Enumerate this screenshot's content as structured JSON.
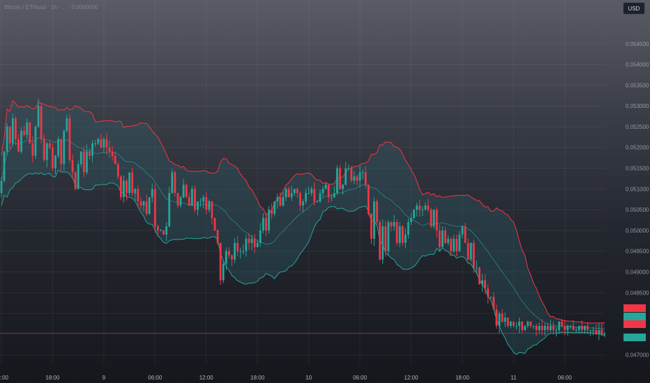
{
  "header": {
    "text": "Bitcoin / ETHusd · 1h · ... · 0.0000000"
  },
  "currency": {
    "label": "USD"
  },
  "colors": {
    "up": "#26a69a",
    "down": "#f23645",
    "band_upper": "#f23645",
    "band_lower": "#26a69a",
    "basis": "#2a9d99",
    "fill": "#2f5c66"
  },
  "chart_data": {
    "type": "candlestick",
    "ylim": [
      0.04676,
      0.05505
    ],
    "y_ticks": [
      0.047,
      0.0475,
      0.048,
      0.0485,
      0.049,
      0.0495,
      0.05,
      0.0505,
      0.051,
      0.0515,
      0.052,
      0.0525,
      0.053,
      0.0535,
      0.054,
      0.0545
    ],
    "y_tick_labels": [
      "0.047000",
      "",
      "",
      "0.048500",
      "0.049000",
      "0.049500",
      "0.050000",
      "0.050500",
      "0.051000",
      "0.051500",
      "0.052000",
      "0.052500",
      "0.053000",
      "0.053500",
      "0.054000",
      "0.054500"
    ],
    "x_tick_labels": [
      "12:00",
      "18:00",
      "9",
      "06:00",
      "12:00",
      "18:00",
      "10",
      "06:00",
      "12:00",
      "18:00",
      "11",
      "06:00"
    ],
    "x_tick_candles": [
      0,
      18,
      36,
      54,
      72,
      90,
      108,
      126,
      144,
      162,
      180,
      198
    ],
    "current_price": 0.04752,
    "close": [
      0.0512,
      0.0519,
      0.0525,
      0.0521,
      0.0527,
      0.0522,
      0.0519,
      0.0524,
      0.0523,
      0.0526,
      0.0521,
      0.0518,
      0.0525,
      0.053,
      0.0522,
      0.0517,
      0.0521,
      0.052,
      0.0515,
      0.0518,
      0.0522,
      0.0516,
      0.0524,
      0.0527,
      0.0517,
      0.0514,
      0.051,
      0.0516,
      0.0519,
      0.0514,
      0.0519,
      0.0518,
      0.0521,
      0.0521,
      0.0522,
      0.052,
      0.0522,
      0.052,
      0.0519,
      0.0518,
      0.0516,
      0.0513,
      0.0508,
      0.0512,
      0.0509,
      0.0514,
      0.0509,
      0.051,
      0.0507,
      0.0506,
      0.0507,
      0.0504,
      0.0508,
      0.051,
      0.0501,
      0.05,
      0.05,
      0.0499,
      0.0501,
      0.0509,
      0.0514,
      0.0509,
      0.0506,
      0.0508,
      0.0511,
      0.0508,
      0.0506,
      0.051,
      0.0505,
      0.0507,
      0.0507,
      0.0508,
      0.0505,
      0.0507,
      0.0503,
      0.05,
      0.0497,
      0.0488,
      0.0492,
      0.0495,
      0.0494,
      0.0493,
      0.0497,
      0.0495,
      0.0495,
      0.0495,
      0.0498,
      0.0497,
      0.0498,
      0.0496,
      0.0497,
      0.05,
      0.0503,
      0.05,
      0.0505,
      0.0504,
      0.0507,
      0.0508,
      0.0506,
      0.0508,
      0.051,
      0.0508,
      0.0509,
      0.051,
      0.0509,
      0.0506,
      0.0507,
      0.0509,
      0.0509,
      0.051,
      0.0507,
      0.0507,
      0.0509,
      0.051,
      0.0511,
      0.0508,
      0.0508,
      0.0509,
      0.0515,
      0.051,
      0.0511,
      0.0515,
      0.0515,
      0.0512,
      0.0513,
      0.0512,
      0.0514,
      0.0514,
      0.0511,
      0.0504,
      0.0498,
      0.0507,
      0.0502,
      0.0493,
      0.0501,
      0.0495,
      0.0502,
      0.0501,
      0.0502,
      0.0497,
      0.0501,
      0.0497,
      0.0499,
      0.0502,
      0.0503,
      0.0505,
      0.0506,
      0.0505,
      0.0505,
      0.0506,
      0.0505,
      0.0501,
      0.0505,
      0.05,
      0.0496,
      0.05,
      0.0497,
      0.0498,
      0.0495,
      0.0498,
      0.0495,
      0.0499,
      0.0501,
      0.0497,
      0.0493,
      0.0497,
      0.0491,
      0.0491,
      0.0487,
      0.0488,
      0.0486,
      0.0484,
      0.0484,
      0.0481,
      0.0477,
      0.048,
      0.0478,
      0.0479,
      0.0477,
      0.0478,
      0.0477,
      0.0477,
      0.0478,
      0.0476,
      0.0477,
      0.0478,
      0.0477,
      0.0477,
      0.0476,
      0.0477,
      0.0476,
      0.0477,
      0.0476,
      0.0477,
      0.0476,
      0.0476,
      0.0478,
      0.0477,
      0.0476,
      0.0477,
      0.0477,
      0.0476,
      0.0476,
      0.0477,
      0.0476,
      0.0477,
      0.0476,
      0.0476,
      0.0476,
      0.0475,
      0.0476,
      0.0475,
      0.0475
    ]
  }
}
